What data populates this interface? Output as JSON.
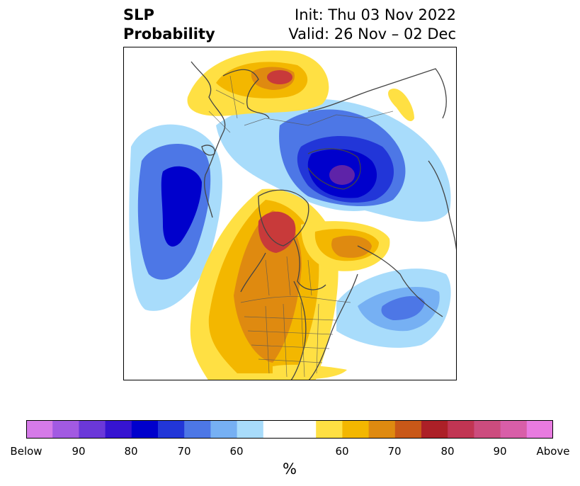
{
  "header": {
    "variable_line1": "SLP",
    "variable_line2": "Probability",
    "init_line": "Init: Thu 03 Nov 2022",
    "valid_line": "Valid: 26 Nov – 02 Dec"
  },
  "colorbar": {
    "colors": [
      "#d57ae8",
      "#a25ae2",
      "#6b38d9",
      "#3614d1",
      "#0000cc",
      "#2236d8",
      "#4d77e6",
      "#76b0f3",
      "#a8dcfb",
      "#ffffff",
      "#ffffff",
      "#ffe043",
      "#f3b700",
      "#df8a10",
      "#c95818",
      "#ac2027",
      "#c13553",
      "#cc4c7e",
      "#d85ea8",
      "#e87be0"
    ],
    "tick_labels": [
      "Below",
      "90",
      "80",
      "70",
      "60",
      "60",
      "70",
      "80",
      "90",
      "Above"
    ],
    "unit": "%"
  },
  "map": {
    "colors": {
      "blue_light": "#a8dcfb",
      "blue_60": "#76b0f3",
      "blue_70": "#4d77e6",
      "blue_75": "#2236d8",
      "blue_80": "#0000cc",
      "purple": "#9c3a8f",
      "yellow_light": "#ffe043",
      "yellow": "#f3b700",
      "orange": "#df8a10",
      "red": "#c83a3a",
      "coast": "#444444"
    }
  }
}
